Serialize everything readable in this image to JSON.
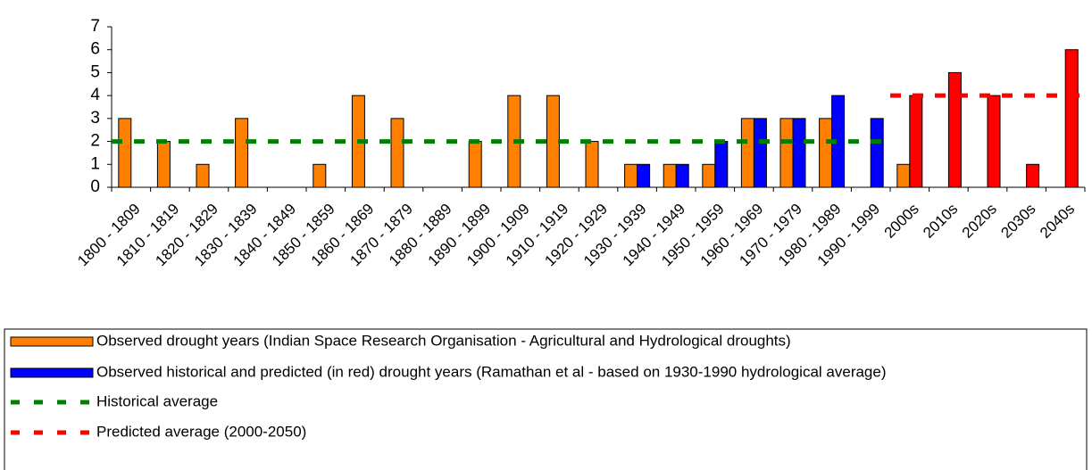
{
  "chart_data": {
    "type": "bar",
    "categories": [
      "1800 - 1809",
      "1810 - 1819",
      "1820 - 1829",
      "1830 - 1839",
      "1840 - 1849",
      "1850 - 1859",
      "1860 - 1869",
      "1870 - 1879",
      "1880 - 1889",
      "1890 - 1899",
      "1900 - 1909",
      "1910 - 1919",
      "1920 - 1929",
      "1930 - 1939",
      "1940 - 1949",
      "1950 - 1959",
      "1960 - 1969",
      "1970 - 1979",
      "1980 - 1989",
      "1990 - 1999",
      "2000s",
      "2010s",
      "2020s",
      "2030s",
      "2040s"
    ],
    "series": [
      {
        "name": "Observed drought years (Indian Space Research Organisation - Agricultural and Hydrological droughts)",
        "type": "bar",
        "color": "#ff8000",
        "values": [
          3,
          2,
          1,
          3,
          null,
          1,
          4,
          3,
          null,
          2,
          4,
          4,
          2,
          1,
          1,
          1,
          3,
          3,
          3,
          null,
          1,
          null,
          null,
          null,
          null
        ]
      },
      {
        "name": "Observed historical and predicted (in red) drought years (Ramathan et al - based on 1930-1990 hydrological average)",
        "type": "bar",
        "color": "#0000ff",
        "colors": [
          "#0000ff",
          "#0000ff",
          "#0000ff",
          "#0000ff",
          "#0000ff",
          "#0000ff",
          "#0000ff",
          "#0000ff",
          "#0000ff",
          "#0000ff",
          "#0000ff",
          "#0000ff",
          "#0000ff",
          "#0000ff",
          "#0000ff",
          "#0000ff",
          "#0000ff",
          "#0000ff",
          "#0000ff",
          "#0000ff",
          "#ff0000",
          "#ff0000",
          "#ff0000",
          "#ff0000",
          "#ff0000"
        ],
        "values": [
          null,
          null,
          null,
          null,
          null,
          null,
          null,
          null,
          null,
          null,
          null,
          null,
          null,
          1,
          1,
          2,
          3,
          3,
          4,
          3,
          4,
          5,
          4,
          1,
          6
        ]
      },
      {
        "name": "Historical average",
        "type": "line",
        "color": "#008000",
        "values": [
          2,
          2,
          2,
          2,
          2,
          2,
          2,
          2,
          2,
          2,
          2,
          2,
          2,
          2,
          2,
          2,
          2,
          2,
          2,
          2,
          null,
          null,
          null,
          null,
          null
        ]
      },
      {
        "name": "Predicted average (2000-2050)",
        "type": "line",
        "color": "#ff0000",
        "values": [
          null,
          null,
          null,
          null,
          null,
          null,
          null,
          null,
          null,
          null,
          null,
          null,
          null,
          null,
          null,
          null,
          null,
          null,
          null,
          null,
          4,
          4,
          4,
          4,
          4
        ]
      }
    ],
    "ylim": [
      0,
      7
    ],
    "yticks": [
      0,
      1,
      2,
      3,
      4,
      5,
      6,
      7
    ],
    "grid": false,
    "legend": "bottom"
  }
}
